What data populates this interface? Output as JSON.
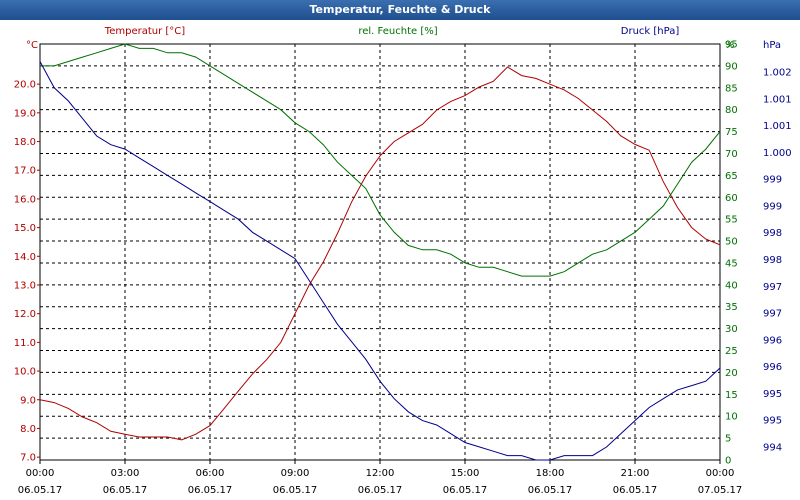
{
  "window": {
    "title": "Temperatur, Feuchte & Druck"
  },
  "chart_data": {
    "type": "line",
    "title": "Temperatur, Feuchte & Druck",
    "colors": {
      "temp": "#b00000",
      "hum": "#007000",
      "press": "#00008b"
    },
    "x_range_hours": [
      0,
      24
    ],
    "x_ticks": [
      {
        "h": 0,
        "time": "00:00",
        "date": "06.05.17"
      },
      {
        "h": 3,
        "time": "03:00",
        "date": "06.05.17"
      },
      {
        "h": 6,
        "time": "06:00",
        "date": "06.05.17"
      },
      {
        "h": 9,
        "time": "09:00",
        "date": "06.05.17"
      },
      {
        "h": 12,
        "time": "12:00",
        "date": "06.05.17"
      },
      {
        "h": 15,
        "time": "15:00",
        "date": "06.05.17"
      },
      {
        "h": 18,
        "time": "18:00",
        "date": "06.05.17"
      },
      {
        "h": 21,
        "time": "21:00",
        "date": "06.05.17"
      },
      {
        "h": 24,
        "time": "00:00",
        "date": "07.05.17"
      }
    ],
    "axes": {
      "temp": {
        "label": "Temperatur [°C]",
        "unit": "°C",
        "range": [
          6.9,
          21.4
        ],
        "ticks": [
          "7.0",
          "8.0",
          "9.0",
          "10.0",
          "11.0",
          "12.0",
          "13.0",
          "14.0",
          "15.0",
          "16.0",
          "17.0",
          "18.0",
          "19.0",
          "20.0"
        ]
      },
      "hum": {
        "label": "rel. Feuchte [%]",
        "unit": "%",
        "range": [
          0,
          95
        ],
        "ticks": [
          "0",
          "5",
          "10",
          "15",
          "20",
          "25",
          "30",
          "35",
          "40",
          "45",
          "50",
          "55",
          "60",
          "65",
          "70",
          "75",
          "80",
          "85",
          "90",
          "95"
        ]
      },
      "press": {
        "label": "Druck [hPa]",
        "unit": "hPa",
        "range": [
          993.5,
          1003.0
        ],
        "ticks": [
          "994",
          "995",
          "995",
          "996",
          "996",
          "997",
          "997",
          "998",
          "998",
          "999",
          "999",
          "1.000",
          "1.001",
          "1.001",
          "1.002"
        ]
      }
    },
    "series": [
      {
        "name": "Temperatur",
        "axis": "temp",
        "x": [
          0,
          0.5,
          1,
          1.5,
          2,
          2.5,
          3,
          3.5,
          4,
          4.5,
          5,
          5.5,
          6,
          6.5,
          7,
          7.5,
          8,
          8.5,
          9,
          9.5,
          10,
          10.5,
          11,
          11.5,
          12,
          12.5,
          13,
          13.5,
          14,
          14.5,
          15,
          15.5,
          16,
          16.5,
          17,
          17.5,
          18,
          18.5,
          19,
          19.5,
          20,
          20.5,
          21,
          21.5,
          22,
          22.5,
          23,
          23.5,
          24
        ],
        "y": [
          9.0,
          8.9,
          8.7,
          8.4,
          8.2,
          7.9,
          7.8,
          7.7,
          7.7,
          7.7,
          7.6,
          7.8,
          8.1,
          8.7,
          9.3,
          9.9,
          10.4,
          11.0,
          12.0,
          13.0,
          13.8,
          14.8,
          15.9,
          16.8,
          17.5,
          18.0,
          18.3,
          18.6,
          19.1,
          19.4,
          19.6,
          19.9,
          20.1,
          20.6,
          20.3,
          20.2,
          20.0,
          19.8,
          19.5,
          19.1,
          18.7,
          18.2,
          17.9,
          17.7,
          16.6,
          15.7,
          15.0,
          14.6,
          14.4
        ]
      },
      {
        "name": "rel. Feuchte",
        "axis": "hum",
        "x": [
          0,
          0.5,
          1,
          1.5,
          2,
          2.5,
          3,
          3.5,
          4,
          4.5,
          5,
          5.5,
          6,
          6.5,
          7,
          7.5,
          8,
          8.5,
          9,
          9.5,
          10,
          10.5,
          11,
          11.5,
          12,
          12.5,
          13,
          13.5,
          14,
          14.5,
          15,
          15.5,
          16,
          16.5,
          17,
          17.5,
          18,
          18.5,
          19,
          19.5,
          20,
          20.5,
          21,
          21.5,
          22,
          22.5,
          23,
          23.5,
          24
        ],
        "y": [
          90,
          90,
          91,
          92,
          93,
          94,
          95,
          94,
          94,
          93,
          93,
          92,
          90,
          88,
          86,
          84,
          82,
          80,
          77,
          75,
          72,
          68,
          65,
          62,
          56,
          52,
          49,
          48,
          48,
          47,
          45,
          44,
          44,
          43,
          42,
          42,
          42,
          43,
          45,
          47,
          48,
          50,
          52,
          55,
          58,
          63,
          68,
          71,
          75
        ]
      },
      {
        "name": "Druck",
        "axis": "press",
        "x": [
          0,
          0.5,
          1,
          1.5,
          2,
          2.5,
          3,
          3.5,
          4,
          4.5,
          5,
          5.5,
          6,
          6.5,
          7,
          7.5,
          8,
          8.5,
          9,
          9.5,
          10,
          10.5,
          11,
          11.5,
          12,
          12.5,
          13,
          13.5,
          14,
          14.5,
          15,
          15.5,
          16,
          16.5,
          17,
          17.5,
          18,
          18.5,
          19,
          19.5,
          20,
          20.5,
          21,
          21.5,
          22,
          22.5,
          23,
          23.5,
          24
        ],
        "y": [
          1002.6,
          1002.0,
          1001.7,
          1001.3,
          1000.9,
          1000.7,
          1000.6,
          1000.4,
          1000.2,
          1000.0,
          999.8,
          999.6,
          999.4,
          999.2,
          999.0,
          998.7,
          998.5,
          998.3,
          998.1,
          997.6,
          997.1,
          996.6,
          996.2,
          995.8,
          995.3,
          994.9,
          994.6,
          994.4,
          994.3,
          994.1,
          993.9,
          993.8,
          993.7,
          993.6,
          993.6,
          993.5,
          993.5,
          993.6,
          993.6,
          993.6,
          993.8,
          994.1,
          994.4,
          994.7,
          994.9,
          995.1,
          995.2,
          995.3,
          995.6
        ]
      }
    ]
  }
}
